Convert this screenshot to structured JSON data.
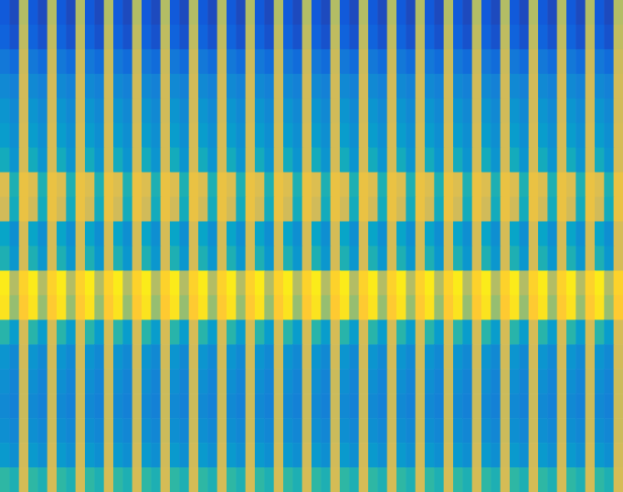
{
  "chart_data": {
    "type": "heatmap",
    "tick_labels": false,
    "clim": [
      0,
      100
    ],
    "cells": [
      [
        12,
        8,
        70,
        12,
        8,
        70,
        12,
        8,
        70,
        12,
        8,
        70,
        12,
        8,
        70,
        12,
        8,
        70,
        12,
        8,
        70,
        12,
        8,
        70,
        12,
        8,
        70,
        12,
        8,
        70,
        12,
        8,
        70,
        12,
        8,
        70,
        12,
        8,
        70,
        12,
        8,
        70,
        12,
        8,
        70,
        12,
        8,
        70,
        12,
        8,
        70,
        12,
        8,
        70,
        12,
        8,
        70,
        12,
        8,
        70,
        12,
        8,
        70,
        12,
        8,
        70
      ],
      [
        15,
        10,
        72,
        15,
        10,
        72,
        15,
        10,
        72,
        15,
        10,
        72,
        15,
        10,
        72,
        15,
        10,
        72,
        15,
        10,
        72,
        15,
        10,
        72,
        15,
        10,
        72,
        15,
        10,
        72,
        15,
        10,
        72,
        15,
        10,
        72,
        15,
        10,
        72,
        15,
        10,
        72,
        15,
        10,
        72,
        15,
        10,
        72,
        15,
        10,
        72,
        15,
        10,
        72,
        15,
        10,
        72,
        15,
        10,
        72,
        15,
        10,
        72,
        15,
        10,
        72
      ],
      [
        22,
        18,
        74,
        22,
        18,
        74,
        22,
        18,
        74,
        22,
        18,
        74,
        22,
        18,
        74,
        22,
        18,
        74,
        22,
        18,
        74,
        22,
        18,
        74,
        22,
        18,
        74,
        22,
        18,
        74,
        22,
        18,
        74,
        22,
        18,
        74,
        22,
        18,
        74,
        22,
        18,
        74,
        22,
        18,
        74,
        22,
        18,
        74,
        22,
        18,
        74,
        22,
        18,
        74,
        22,
        18,
        74,
        22,
        18,
        74,
        22,
        18,
        74,
        22,
        18,
        74
      ],
      [
        28,
        25,
        75,
        28,
        25,
        75,
        28,
        25,
        75,
        28,
        25,
        75,
        28,
        25,
        75,
        28,
        25,
        75,
        28,
        25,
        75,
        28,
        25,
        75,
        28,
        25,
        75,
        28,
        25,
        75,
        28,
        25,
        75,
        28,
        25,
        75,
        28,
        25,
        75,
        28,
        25,
        75,
        28,
        25,
        75,
        28,
        25,
        75,
        28,
        25,
        75,
        28,
        25,
        75,
        28,
        25,
        75,
        28,
        25,
        75,
        28,
        25,
        75,
        28,
        25,
        75
      ],
      [
        32,
        28,
        75,
        32,
        28,
        75,
        32,
        28,
        75,
        32,
        28,
        75,
        32,
        28,
        75,
        32,
        28,
        75,
        32,
        28,
        75,
        32,
        28,
        75,
        32,
        28,
        75,
        32,
        28,
        75,
        32,
        28,
        75,
        32,
        28,
        75,
        32,
        28,
        75,
        32,
        28,
        75,
        32,
        28,
        75,
        32,
        28,
        75,
        32,
        28,
        75,
        32,
        28,
        75,
        32,
        28,
        75,
        32,
        28,
        75,
        32,
        28,
        75,
        32,
        28,
        75
      ],
      [
        35,
        30,
        76,
        35,
        30,
        76,
        35,
        30,
        76,
        35,
        30,
        76,
        35,
        30,
        76,
        35,
        30,
        76,
        35,
        30,
        76,
        35,
        30,
        76,
        35,
        30,
        76,
        35,
        30,
        76,
        35,
        30,
        76,
        35,
        30,
        76,
        35,
        30,
        76,
        35,
        30,
        76,
        35,
        30,
        76,
        35,
        30,
        76,
        35,
        30,
        76,
        35,
        30,
        76,
        35,
        30,
        76,
        35,
        30,
        76,
        35,
        30,
        76,
        35,
        30,
        76
      ],
      [
        42,
        32,
        76,
        42,
        32,
        76,
        42,
        32,
        76,
        42,
        32,
        76,
        42,
        32,
        76,
        42,
        32,
        76,
        42,
        32,
        76,
        42,
        32,
        76,
        42,
        32,
        76,
        42,
        32,
        76,
        42,
        32,
        76,
        42,
        32,
        76,
        42,
        32,
        76,
        42,
        32,
        76,
        42,
        32,
        76,
        42,
        32,
        76,
        42,
        32,
        76,
        42,
        32,
        76,
        42,
        32,
        76,
        42,
        32,
        76,
        42,
        32,
        76,
        42,
        32,
        76
      ],
      [
        78,
        45,
        82,
        78,
        45,
        82,
        78,
        45,
        82,
        78,
        45,
        82,
        78,
        45,
        82,
        78,
        45,
        82,
        78,
        45,
        82,
        78,
        45,
        82,
        78,
        45,
        82,
        78,
        45,
        82,
        78,
        45,
        82,
        78,
        45,
        82,
        78,
        45,
        82,
        78,
        45,
        82,
        78,
        45,
        82,
        78,
        45,
        82,
        78,
        45,
        82,
        78,
        45,
        82,
        78,
        45,
        82,
        78,
        45,
        82,
        78,
        45,
        82,
        78,
        45,
        82
      ],
      [
        75,
        42,
        82,
        75,
        42,
        82,
        75,
        42,
        82,
        75,
        42,
        82,
        75,
        42,
        82,
        75,
        42,
        82,
        75,
        42,
        82,
        75,
        42,
        82,
        75,
        42,
        82,
        75,
        42,
        82,
        75,
        42,
        82,
        75,
        42,
        82,
        75,
        42,
        82,
        75,
        42,
        82,
        75,
        42,
        82,
        75,
        42,
        82,
        75,
        42,
        82,
        75,
        42,
        82,
        75,
        42,
        82,
        75,
        42,
        82,
        75,
        42,
        82,
        75,
        42,
        82
      ],
      [
        38,
        30,
        76,
        38,
        30,
        76,
        38,
        30,
        76,
        38,
        30,
        76,
        38,
        30,
        76,
        38,
        30,
        76,
        38,
        30,
        76,
        38,
        30,
        76,
        38,
        30,
        76,
        38,
        30,
        76,
        38,
        30,
        76,
        38,
        30,
        76,
        38,
        30,
        76,
        38,
        30,
        76,
        38,
        30,
        76,
        38,
        30,
        76,
        38,
        30,
        76,
        38,
        30,
        76,
        38,
        30,
        76,
        38,
        30,
        76,
        38,
        30,
        76,
        38,
        30,
        76
      ],
      [
        45,
        33,
        76,
        45,
        33,
        76,
        45,
        33,
        76,
        45,
        33,
        76,
        45,
        33,
        76,
        45,
        33,
        76,
        45,
        33,
        76,
        45,
        33,
        76,
        45,
        33,
        76,
        45,
        33,
        76,
        45,
        33,
        76,
        45,
        33,
        76,
        45,
        33,
        76,
        45,
        33,
        76,
        45,
        33,
        76,
        45,
        33,
        76,
        45,
        33,
        76,
        45,
        33,
        76,
        45,
        33,
        76,
        45,
        33,
        76,
        45,
        33,
        76,
        45,
        33,
        76
      ],
      [
        96,
        70,
        90,
        96,
        70,
        90,
        96,
        70,
        90,
        96,
        70,
        90,
        96,
        70,
        90,
        96,
        70,
        90,
        96,
        70,
        90,
        96,
        70,
        90,
        96,
        70,
        90,
        96,
        70,
        90,
        96,
        70,
        90,
        96,
        70,
        90,
        96,
        70,
        90,
        96,
        70,
        90,
        96,
        70,
        90,
        96,
        70,
        90,
        96,
        70,
        90,
        96,
        70,
        90,
        96,
        70,
        90,
        96,
        70,
        90,
        96,
        70,
        90,
        96,
        70,
        90
      ],
      [
        94,
        65,
        88,
        94,
        65,
        88,
        94,
        65,
        88,
        94,
        65,
        88,
        94,
        65,
        88,
        94,
        65,
        88,
        94,
        65,
        88,
        94,
        65,
        88,
        94,
        65,
        88,
        94,
        65,
        88,
        94,
        65,
        88,
        94,
        65,
        88,
        94,
        65,
        88,
        94,
        65,
        88,
        94,
        65,
        88,
        94,
        65,
        88,
        94,
        65,
        88,
        94,
        65,
        88,
        94,
        65,
        88,
        94,
        65,
        88,
        94,
        65,
        88,
        94,
        65,
        88
      ],
      [
        48,
        35,
        76,
        48,
        35,
        76,
        48,
        35,
        76,
        48,
        35,
        76,
        48,
        35,
        76,
        48,
        35,
        76,
        48,
        35,
        76,
        48,
        35,
        76,
        48,
        35,
        76,
        48,
        35,
        76,
        48,
        35,
        76,
        48,
        35,
        76,
        48,
        35,
        76,
        48,
        35,
        76,
        48,
        35,
        76,
        48,
        35,
        76,
        48,
        35,
        76,
        48,
        35,
        76,
        48,
        35,
        76,
        48,
        35,
        76,
        48,
        35,
        76,
        48,
        35,
        76
      ],
      [
        32,
        28,
        75,
        32,
        28,
        75,
        32,
        28,
        75,
        32,
        28,
        75,
        32,
        28,
        75,
        32,
        28,
        75,
        32,
        28,
        75,
        32,
        28,
        75,
        32,
        28,
        75,
        32,
        28,
        75,
        32,
        28,
        75,
        32,
        28,
        75,
        32,
        28,
        75,
        32,
        28,
        75,
        32,
        28,
        75,
        32,
        28,
        75,
        32,
        28,
        75,
        32,
        28,
        75,
        32,
        28,
        75,
        32,
        28,
        75,
        32,
        28,
        75,
        32,
        28,
        75
      ],
      [
        30,
        26,
        74,
        30,
        26,
        74,
        30,
        26,
        74,
        30,
        26,
        74,
        30,
        26,
        74,
        30,
        26,
        74,
        30,
        26,
        74,
        30,
        26,
        74,
        30,
        26,
        74,
        30,
        26,
        74,
        30,
        26,
        74,
        30,
        26,
        74,
        30,
        26,
        74,
        30,
        26,
        74,
        30,
        26,
        74,
        30,
        26,
        74,
        30,
        26,
        74,
        30,
        26,
        74,
        30,
        26,
        74,
        30,
        26,
        74,
        30,
        26,
        74,
        30,
        26,
        74
      ],
      [
        28,
        25,
        74,
        28,
        25,
        74,
        28,
        25,
        74,
        28,
        25,
        74,
        28,
        25,
        74,
        28,
        25,
        74,
        28,
        25,
        74,
        28,
        25,
        74,
        28,
        25,
        74,
        28,
        25,
        74,
        28,
        25,
        74,
        28,
        25,
        74,
        28,
        25,
        74,
        28,
        25,
        74,
        28,
        25,
        74,
        28,
        25,
        74,
        28,
        25,
        74,
        28,
        25,
        74,
        28,
        25,
        74,
        28,
        25,
        74,
        28,
        25,
        74,
        28,
        25,
        74
      ],
      [
        30,
        27,
        74,
        30,
        27,
        74,
        30,
        27,
        74,
        30,
        27,
        74,
        30,
        27,
        74,
        30,
        27,
        74,
        30,
        27,
        74,
        30,
        27,
        74,
        30,
        27,
        74,
        30,
        27,
        74,
        30,
        27,
        74,
        30,
        27,
        74,
        30,
        27,
        74,
        30,
        27,
        74,
        30,
        27,
        74,
        30,
        27,
        74,
        30,
        27,
        74,
        30,
        27,
        74,
        30,
        27,
        74,
        30,
        27,
        74,
        30,
        27,
        74,
        30,
        27,
        74
      ],
      [
        34,
        30,
        75,
        34,
        30,
        75,
        34,
        30,
        75,
        34,
        30,
        75,
        34,
        30,
        75,
        34,
        30,
        75,
        34,
        30,
        75,
        34,
        30,
        75,
        34,
        30,
        75,
        34,
        30,
        75,
        34,
        30,
        75,
        34,
        30,
        75,
        34,
        30,
        75,
        34,
        30,
        75,
        34,
        30,
        75,
        34,
        30,
        75,
        34,
        30,
        75,
        34,
        30,
        75,
        34,
        30,
        75,
        34,
        30,
        75,
        34,
        30,
        75,
        34,
        30,
        75
      ],
      [
        50,
        45,
        76,
        50,
        45,
        76,
        50,
        45,
        76,
        50,
        45,
        76,
        50,
        45,
        76,
        50,
        45,
        76,
        50,
        45,
        76,
        50,
        45,
        76,
        50,
        45,
        76,
        50,
        45,
        76,
        50,
        45,
        76,
        50,
        45,
        76,
        50,
        45,
        76,
        50,
        45,
        76,
        50,
        45,
        76,
        50,
        45,
        76,
        50,
        45,
        76,
        50,
        45,
        76,
        50,
        45,
        76,
        50,
        45,
        76,
        50,
        45,
        76,
        50,
        45,
        76
      ]
    ]
  }
}
